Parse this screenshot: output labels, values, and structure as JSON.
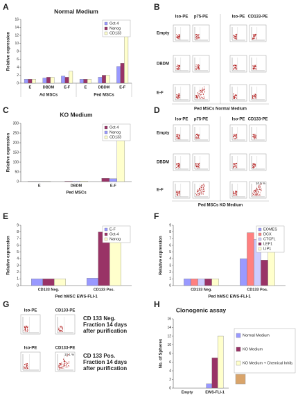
{
  "chart_data": [
    {
      "type": "bar",
      "panel": "A",
      "title": "Normal Medium",
      "ylabel": "Relative expression",
      "categories": [
        "E",
        "DBDM",
        "E-F",
        "E",
        "DBDM",
        "E-F"
      ],
      "groups": [
        "Ad MSCs",
        "Ped MSCs"
      ],
      "series": [
        {
          "name": "Oct-4",
          "color": "#9999ff",
          "values": [
            1,
            1.3,
            1.8,
            1,
            1.5,
            4.2
          ]
        },
        {
          "name": "Nanog",
          "color": "#993366",
          "values": [
            1,
            1.5,
            1.5,
            1,
            2,
            5
          ]
        },
        {
          "name": "CD133",
          "color": "#ffffcc",
          "values": [
            1,
            1.5,
            3,
            1,
            2,
            15
          ]
        }
      ],
      "ylim": [
        0,
        16
      ],
      "yticks": [
        0,
        2,
        4,
        6,
        8,
        10,
        12,
        14,
        16
      ],
      "grid": false,
      "legend": "upper right"
    },
    {
      "type": "bar",
      "panel": "C",
      "title": "KO Medium",
      "ylabel": "Relative expression",
      "xlabel": "Ped MSCs",
      "categories": [
        "E",
        "DBDM",
        "E-F"
      ],
      "series": [
        {
          "name": "Oct-4",
          "color": "#993366",
          "values": [
            1,
            2,
            17
          ]
        },
        {
          "name": "Nanog",
          "color": "#9999ff",
          "values": [
            1,
            2,
            15
          ]
        },
        {
          "name": "CD133",
          "color": "#ffffcc",
          "values": [
            1,
            3,
            250
          ]
        }
      ],
      "ylim": [
        0,
        300
      ],
      "yticks": [
        0,
        50,
        100,
        150,
        200,
        250,
        300
      ],
      "grid": false,
      "legend": "upper right"
    },
    {
      "type": "bar",
      "panel": "E",
      "ylabel": "Relative expression",
      "xlabel": "Ped hMSC EWS-FLI-1",
      "categories": [
        "CD133 Neg.",
        "CD133 Pos."
      ],
      "series": [
        {
          "name": "E-F",
          "color": "#9999ff",
          "values": [
            1,
            1.1
          ]
        },
        {
          "name": "Oct-4",
          "color": "#993366",
          "values": [
            1,
            8
          ]
        },
        {
          "name": "Nanog",
          "color": "#ffffcc",
          "values": [
            1,
            6.5
          ]
        }
      ],
      "ylim": [
        0,
        9
      ],
      "yticks": [
        0,
        1,
        2,
        3,
        4,
        5,
        6,
        7,
        8,
        9
      ],
      "grid": false,
      "legend": "upper right"
    },
    {
      "type": "bar",
      "panel": "F",
      "ylabel": "Relative expression",
      "xlabel": "Ped hMSC EWS-FLI-1",
      "categories": [
        "CD133 Neg.",
        "CD133 Pos."
      ],
      "series": [
        {
          "name": "EOMES",
          "color": "#9999ff",
          "values": [
            1,
            4
          ]
        },
        {
          "name": "DCX",
          "color": "#ff8080",
          "values": [
            1,
            7.9
          ]
        },
        {
          "name": "CTCFL",
          "color": "#ccccff",
          "values": [
            1,
            6.9
          ]
        },
        {
          "name": "LEF1",
          "color": "#993366",
          "values": [
            1,
            3.8
          ]
        },
        {
          "name": "LIP1",
          "color": "#ffffcc",
          "values": [
            1,
            7.8
          ]
        }
      ],
      "ylim": [
        0,
        9
      ],
      "yticks": [
        0,
        1,
        2,
        3,
        4,
        5,
        6,
        7,
        8,
        9
      ],
      "grid": false,
      "legend": "upper right"
    },
    {
      "type": "bar",
      "panel": "H",
      "title": "Clonogenic assay",
      "ylabel": "No. of Spheres",
      "categories": [
        "Empty",
        "EWS-FLI-1"
      ],
      "series": [
        {
          "name": "Normal Medium",
          "color": "#9999ff",
          "values": [
            0,
            1
          ]
        },
        {
          "name": "KO Medium",
          "color": "#993366",
          "values": [
            0,
            7
          ]
        },
        {
          "name": "KO Medium + Chemical Inhib.",
          "color": "#ffffcc",
          "values": [
            0,
            12
          ]
        }
      ],
      "ylim": [
        0,
        16
      ],
      "yticks": [
        0,
        2,
        4,
        6,
        8,
        10,
        12,
        14,
        16
      ],
      "grid": false,
      "legend": "right"
    }
  ],
  "flow_panels": [
    {
      "panel": "B",
      "columns": [
        "Iso-PE",
        "p75-PE",
        "Iso-PE",
        "CD133-PE"
      ],
      "rows": [
        "Empty",
        "DBDM",
        "E-F"
      ],
      "caption": "Ped MSCs Normal Medium"
    },
    {
      "panel": "D",
      "columns": [
        "Iso-PE",
        "p75-PE",
        "Iso-PE",
        "CD133-PE"
      ],
      "rows": [
        "Empty",
        "DBDM",
        "E-F"
      ],
      "caption": "Ped MSCs KO Medium",
      "annotation": "10.5 %"
    },
    {
      "panel": "G",
      "rows": [
        {
          "columns": [
            "Iso-PE",
            "CD133-PE"
          ],
          "text": [
            "CD 133 Neg.",
            "Fraction 14 days",
            "after purification"
          ]
        },
        {
          "columns": [
            "Iso-PE",
            "CD133-PE"
          ],
          "text": [
            "CD 133 Pos.",
            "Fraction 14 days",
            "after purification"
          ]
        }
      ],
      "annotation": "10.1 %"
    }
  ]
}
